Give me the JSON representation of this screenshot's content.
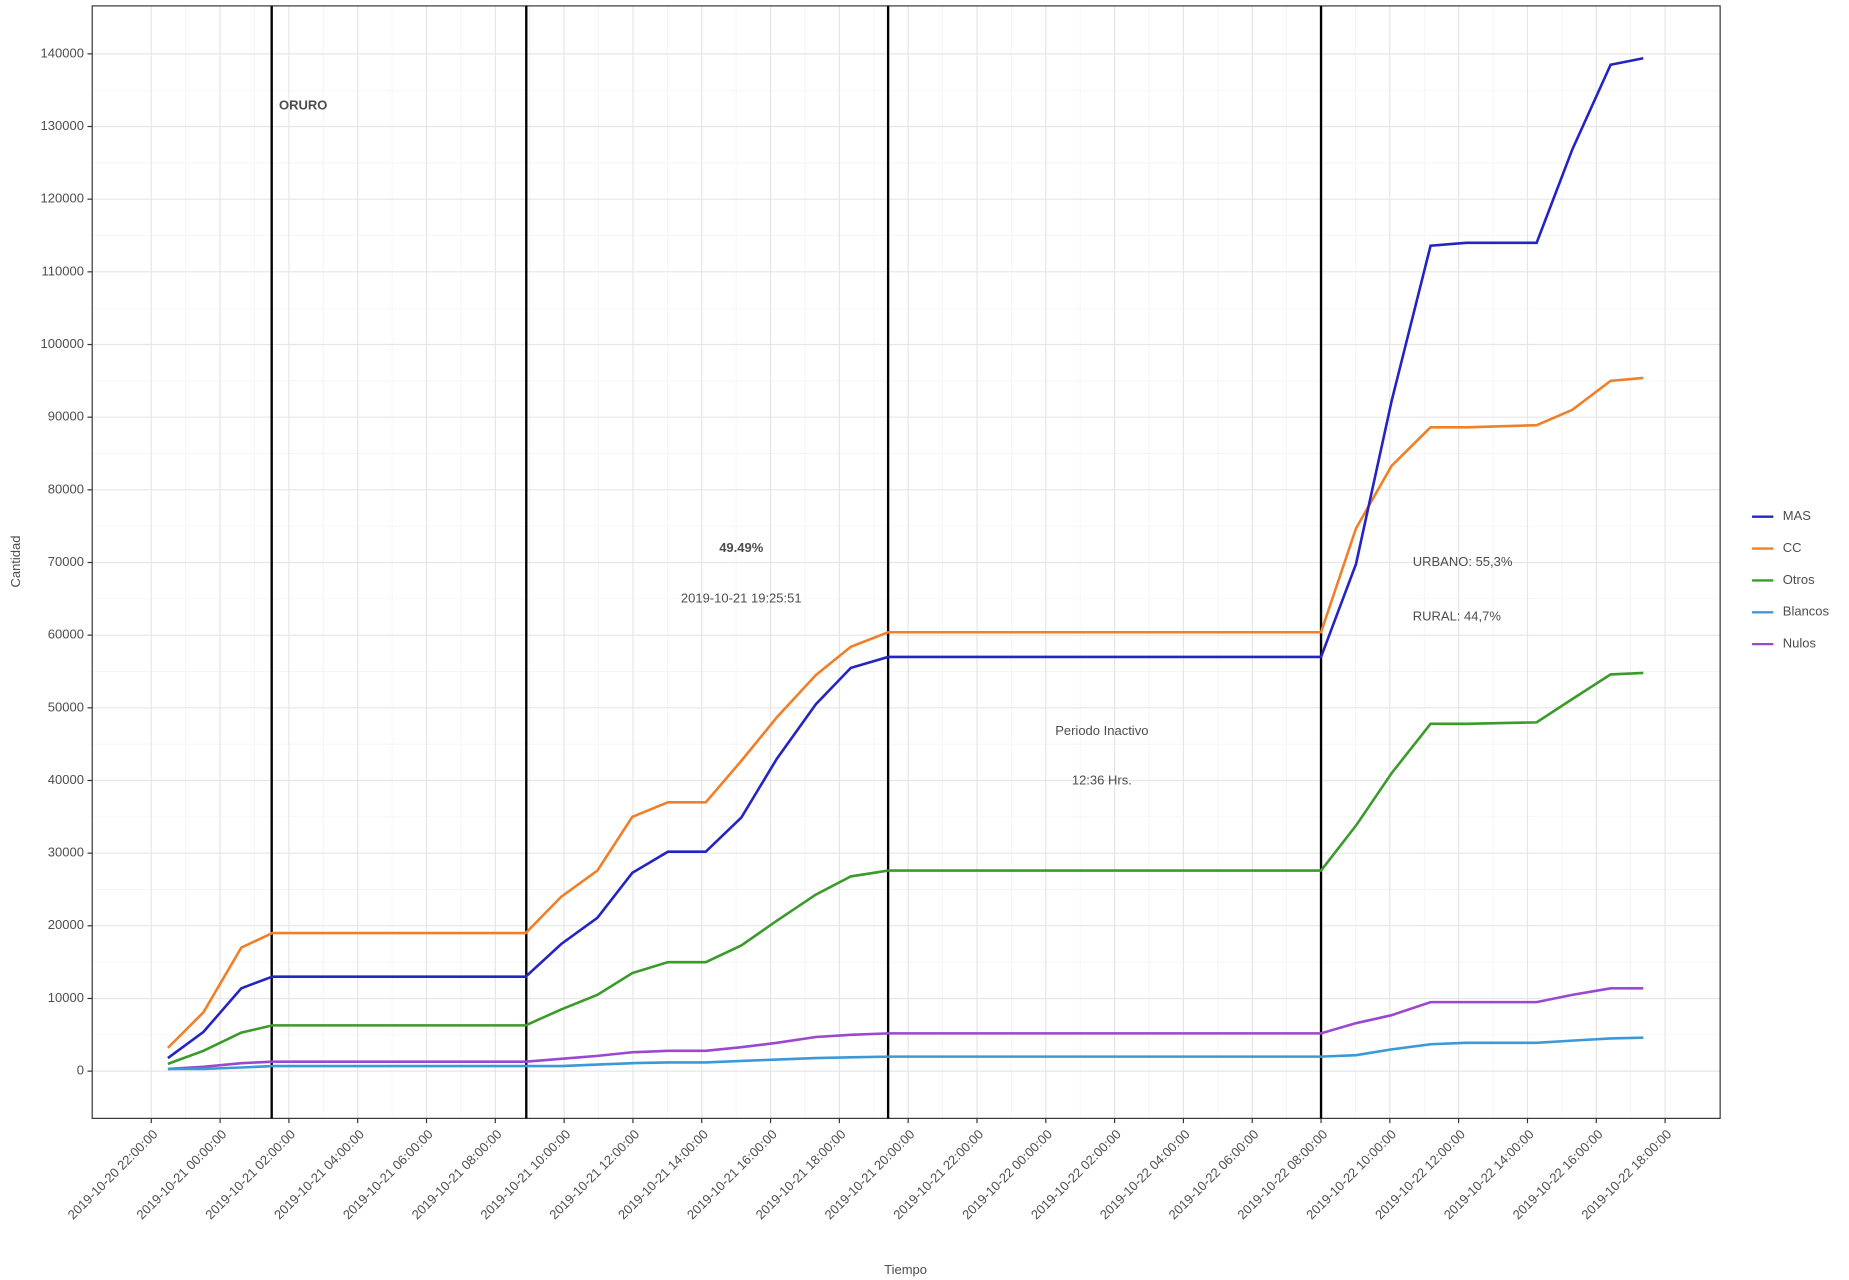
{
  "chart_data": {
    "type": "line",
    "x_label": "Tiempo",
    "y_label": "Cantidad",
    "x": [
      "2019-10-20 22:29",
      "2019-10-20 23:31",
      "2019-10-21 00:37",
      "2019-10-21 01:31",
      "2019-10-21 08:53",
      "2019-10-21 09:55",
      "2019-10-21 10:58",
      "2019-10-21 11:59",
      "2019-10-21 13:01",
      "2019-10-21 14:07",
      "2019-10-21 15:09",
      "2019-10-21 16:11",
      "2019-10-21 17:19",
      "2019-10-21 18:20",
      "2019-10-21 19:25",
      "2019-10-22 08:00",
      "2019-10-22 09:01",
      "2019-10-22 10:03",
      "2019-10-22 11:11",
      "2019-10-22 12:13",
      "2019-10-22 14:16",
      "2019-10-22 15:18",
      "2019-10-22 16:25",
      "2019-10-22 17:22"
    ],
    "series": [
      {
        "name": "MAS",
        "color": "#2424c4",
        "values": [
          1800,
          5400,
          11400,
          13000,
          13000,
          17500,
          21100,
          27300,
          30200,
          30200,
          34900,
          43000,
          50500,
          55500,
          57000,
          57000,
          69800,
          92200,
          113600,
          114000,
          114000,
          126800,
          138500,
          139400
        ]
      },
      {
        "name": "CC",
        "color": "#f07f28",
        "values": [
          3200,
          8100,
          17000,
          19000,
          19000,
          24000,
          27600,
          35000,
          37000,
          37000,
          42700,
          48700,
          54500,
          58400,
          60400,
          60400,
          74700,
          83300,
          88600,
          88600,
          88900,
          91000,
          95000,
          95400
        ]
      },
      {
        "name": "Otros",
        "color": "#3a9a2a",
        "values": [
          1000,
          2800,
          5300,
          6300,
          6300,
          8500,
          10500,
          13500,
          15000,
          15000,
          17300,
          20700,
          24300,
          26800,
          27600,
          27600,
          33800,
          41000,
          47800,
          47800,
          48000,
          51200,
          54600,
          54800
        ]
      },
      {
        "name": "Blancos",
        "color": "#3a9ad8",
        "values": [
          300,
          300,
          500,
          700,
          700,
          700,
          900,
          1100,
          1200,
          1200,
          1400,
          1600,
          1800,
          1900,
          2000,
          2000,
          2200,
          3000,
          3700,
          3900,
          3900,
          4200,
          4500,
          4600
        ]
      },
      {
        "name": "Nulos",
        "color": "#9a48d0",
        "values": [
          300,
          600,
          1100,
          1300,
          1300,
          1700,
          2100,
          2600,
          2800,
          2800,
          3300,
          3900,
          4700,
          5000,
          5200,
          5200,
          6600,
          7700,
          9500,
          9500,
          9500,
          10500,
          11400,
          11400
        ]
      }
    ],
    "xlim": [
      "2019-10-20 20:17:00",
      "2019-10-22 19:36:00"
    ],
    "xticks": [
      "2019-10-20 22:00:00",
      "2019-10-21 00:00:00",
      "2019-10-21 02:00:00",
      "2019-10-21 04:00:00",
      "2019-10-21 06:00:00",
      "2019-10-21 08:00:00",
      "2019-10-21 10:00:00",
      "2019-10-21 12:00:00",
      "2019-10-21 14:00:00",
      "2019-10-21 16:00:00",
      "2019-10-21 18:00:00",
      "2019-10-21 20:00:00",
      "2019-10-21 22:00:00",
      "2019-10-22 00:00:00",
      "2019-10-22 02:00:00",
      "2019-10-22 04:00:00",
      "2019-10-22 06:00:00",
      "2019-10-22 08:00:00",
      "2019-10-22 10:00:00",
      "2019-10-22 12:00:00",
      "2019-10-22 14:00:00",
      "2019-10-22 16:00:00",
      "2019-10-22 18:00:00"
    ],
    "ylim": [
      -6500,
      146600
    ],
    "yticks": [
      0,
      10000,
      20000,
      30000,
      40000,
      50000,
      60000,
      70000,
      80000,
      90000,
      100000,
      110000,
      120000,
      130000,
      140000
    ],
    "grid": true,
    "legend": "right",
    "vlines": [
      "2019-10-21 01:30",
      "2019-10-21 08:54",
      "2019-10-21 19:25",
      "2019-10-22 08:00"
    ],
    "annotations": [
      "ORURO",
      "49.49%",
      "2019-10-21 19:25:51",
      "Periodo Inactivo",
      "12:36 Hrs.",
      "URBANO: 55,3%",
      "RURAL: 44,7%"
    ]
  }
}
